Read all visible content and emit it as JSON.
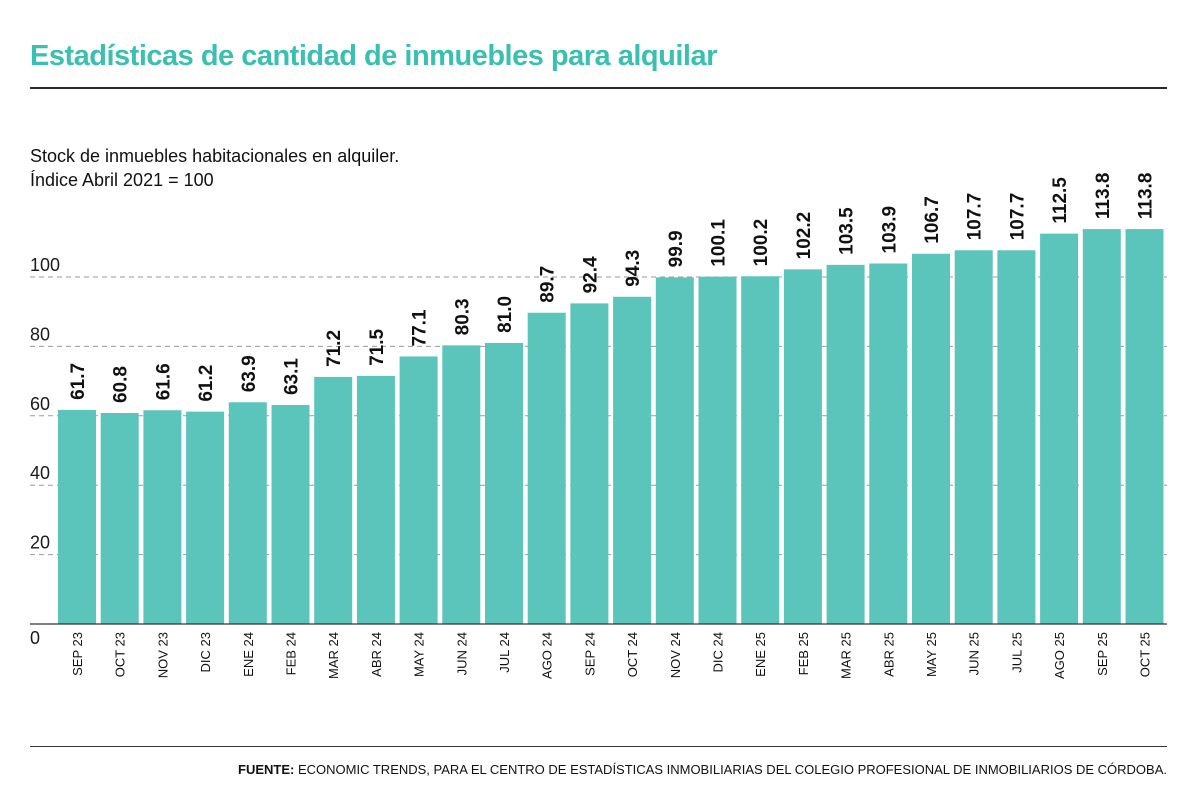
{
  "header": {
    "title": "Estadísticas de cantidad de inmuebles para alquilar",
    "subtitle_line1": "Stock de inmuebles habitacionales en alquiler.",
    "subtitle_line2": "Índice Abril 2021 = 100"
  },
  "footer": {
    "source_label": "FUENTE:",
    "source_text": "ECONOMIC TRENDS, PARA EL CENTRO DE ESTADÍSTICAS INMOBILIARIAS DEL COLEGIO PROFESIONAL DE INMOBILIARIOS DE CÓRDOBA."
  },
  "colors": {
    "title": "#3bbfb0",
    "bar": "#5bc4bb",
    "text": "#1a1a1a",
    "gridline": "#9a9a9a"
  },
  "chart_data": {
    "type": "bar",
    "categories": [
      "SEP 23",
      "OCT 23",
      "NOV 23",
      "DIC 23",
      "ENE 24",
      "FEB 24",
      "MAR 24",
      "ABR 24",
      "MAY 24",
      "JUN 24",
      "JUL 24",
      "AGO 24",
      "SEP 24",
      "OCT 24",
      "NOV 24",
      "DIC 24",
      "ENE 25",
      "FEB 25",
      "MAR 25",
      "ABR 25",
      "MAY 25",
      "JUN 25",
      "JUL 25",
      "AGO 25",
      "SEP 25",
      "OCT 25"
    ],
    "values": [
      61.7,
      60.8,
      61.6,
      61.2,
      63.9,
      63.1,
      71.2,
      71.5,
      77.1,
      80.3,
      81.0,
      89.7,
      92.4,
      94.3,
      99.9,
      100.1,
      100.2,
      102.2,
      103.5,
      103.9,
      106.7,
      107.7,
      107.7,
      112.5,
      113.8,
      113.8
    ],
    "value_labels": [
      "61.7",
      "60.8",
      "61.6",
      "61.2",
      "63.9",
      "63.1",
      "71.2",
      "71.5",
      "77.1",
      "80.3",
      "81.0",
      "89.7",
      "92.4",
      "94.3",
      "99.9",
      "100.1",
      "100.2",
      "102.2",
      "103.5",
      "103.9",
      "106.7",
      "107.7",
      "107.7",
      "112.5",
      "113.8",
      "113.8"
    ],
    "yticks": [
      0,
      20,
      40,
      60,
      80,
      100
    ],
    "ylim": [
      0,
      125
    ],
    "grid": true,
    "gridline_style": "dashed",
    "legend": "none"
  }
}
